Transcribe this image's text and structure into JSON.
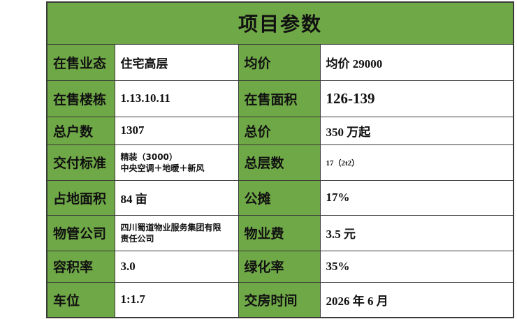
{
  "title": "项目参数",
  "rows": [
    {
      "l1": "在售业态",
      "v1": "住宅高层",
      "l2": "均价",
      "v2": "均价 29000"
    },
    {
      "l1": "在售楼栋",
      "v1": "1.13.10.11",
      "l2": "在售面积",
      "v2": "126-139"
    },
    {
      "l1": "总户数",
      "v1": "1307",
      "l2": "总价",
      "v2": "350 万起"
    },
    {
      "l1": "交付标准",
      "v1a": "精装（3000）",
      "v1b": "中央空调＋地暖＋新风",
      "l2": "总层数",
      "v2": "17（2t2）"
    },
    {
      "l1": "占地面积",
      "v1": "84 亩",
      "l2": "公摊",
      "v2": "17%"
    },
    {
      "l1": "物管公司",
      "v1a": "四川蜀道物业服务集团有限",
      "v1b": "责任公司",
      "l2": "物业费",
      "v2": "3.5 元"
    },
    {
      "l1": "容积率",
      "v1": "3.0",
      "l2": "绿化率",
      "v2": "35%"
    },
    {
      "l1": "车位",
      "v1": "1:1.7",
      "l2": "交房时间",
      "v2": "2026 年 6 月"
    }
  ],
  "colors": {
    "header_green": "#6fa846",
    "border": "#3a3a3a"
  }
}
